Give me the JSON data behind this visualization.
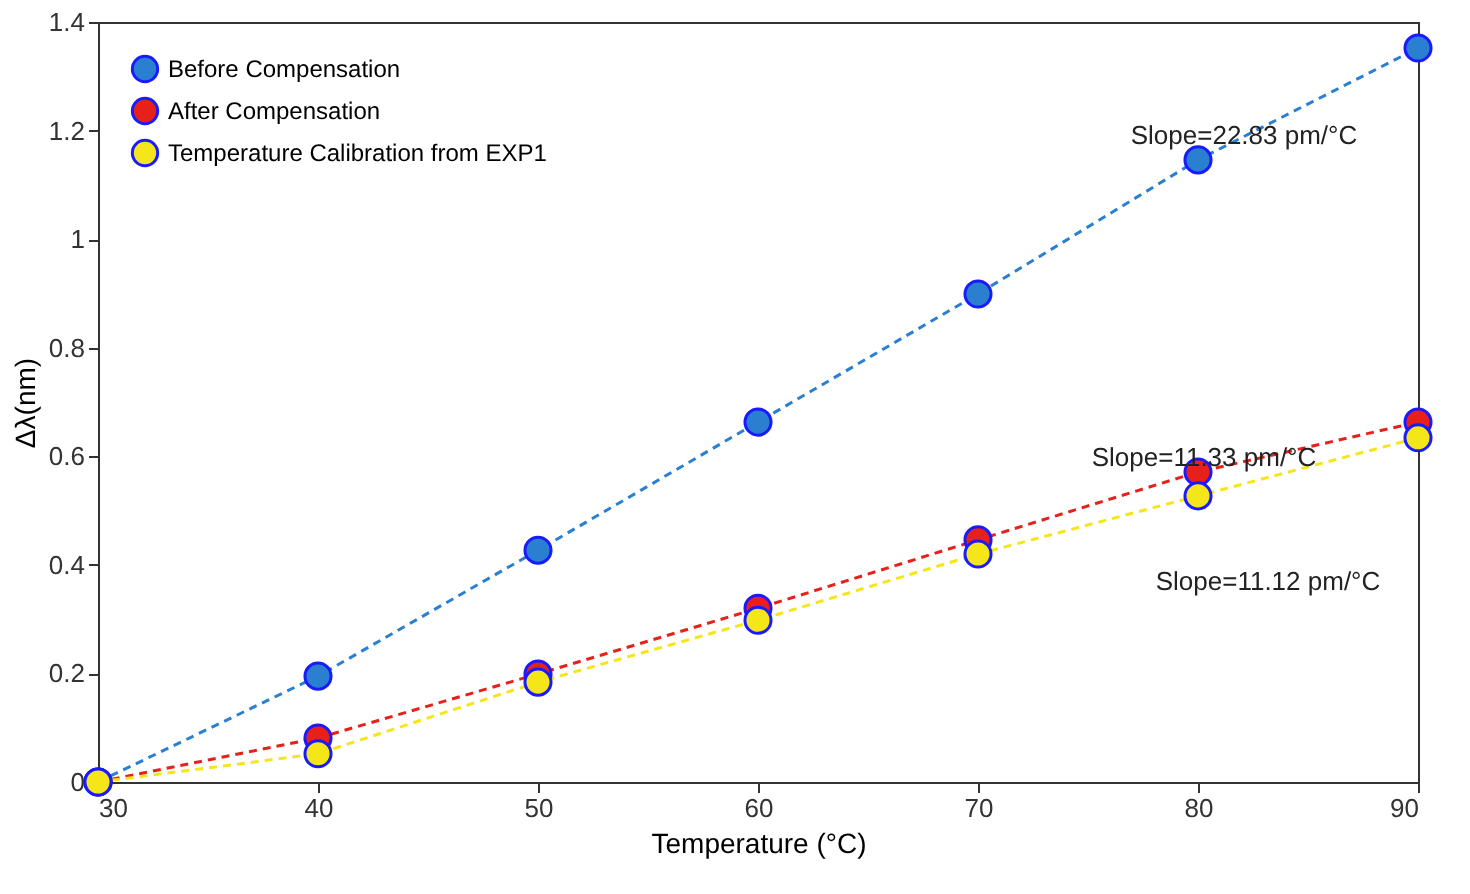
{
  "chart_data": {
    "type": "line",
    "xlabel": "Temperature (°C)",
    "ylabel": "Δλ(nm)",
    "x": [
      30,
      40,
      50,
      60,
      70,
      80,
      90
    ],
    "series": [
      {
        "name": "Before Compensation",
        "color": "#2a7fd0",
        "values": [
          0,
          0.195,
          0.427,
          0.663,
          0.899,
          1.146,
          1.352
        ]
      },
      {
        "name": "After Compensation",
        "color": "#e8201a",
        "values": [
          0,
          0.081,
          0.199,
          0.32,
          0.446,
          0.571,
          0.663
        ]
      },
      {
        "name": "Temperature Calibration from EXP1",
        "color": "#f5e61a",
        "values": [
          0,
          0.052,
          0.184,
          0.298,
          0.42,
          0.527,
          0.634
        ]
      }
    ],
    "xlim": [
      30,
      90
    ],
    "ylim": [
      0,
      1.4
    ],
    "xticks": [
      30,
      40,
      50,
      60,
      70,
      80,
      90
    ],
    "yticks": [
      {
        "value": 0,
        "label": "0"
      },
      0.2,
      0.4,
      0.6,
      0.8,
      {
        "value": 1,
        "label": "1"
      },
      1.2,
      1.4
    ],
    "annotations": [
      "Slope=22.83 pm/°C",
      "Slope=11.33 pm/°C",
      "Slope=11.12 pm/°C"
    ],
    "legend": "top left",
    "grid": false,
    "marker": "circle",
    "line_style": "dashed"
  }
}
